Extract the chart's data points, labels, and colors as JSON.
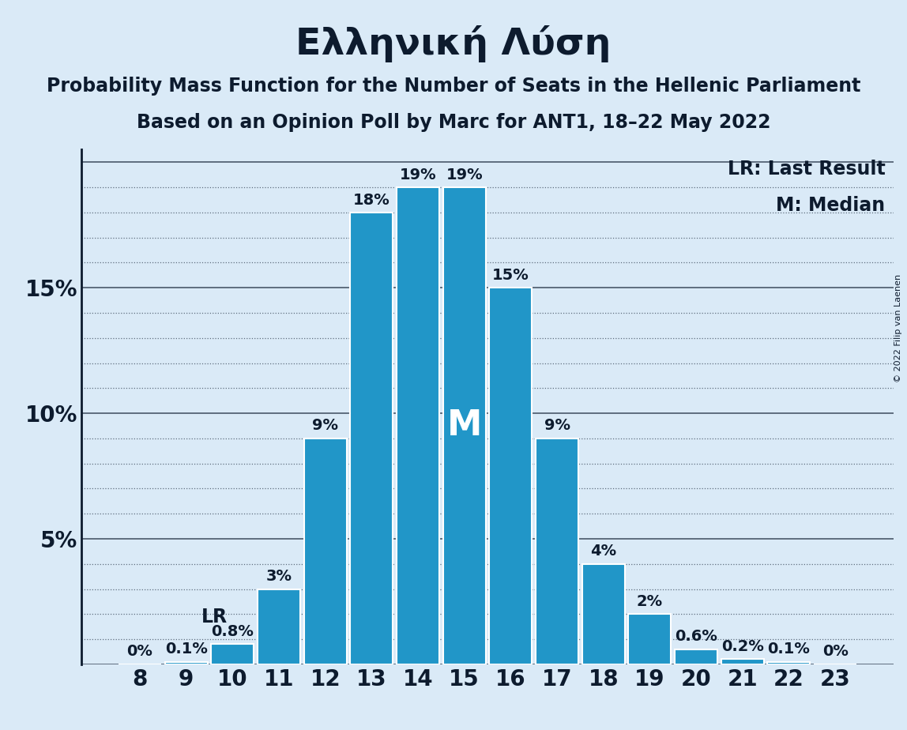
{
  "title": "Ελληνική Λύση",
  "subtitle1": "Probability Mass Function for the Number of Seats in the Hellenic Parliament",
  "subtitle2": "Based on an Opinion Poll by Marc for ANT1, 18–22 May 2022",
  "copyright": "© 2022 Filip van Laenen",
  "seats": [
    8,
    9,
    10,
    11,
    12,
    13,
    14,
    15,
    16,
    17,
    18,
    19,
    20,
    21,
    22,
    23
  ],
  "probabilities": [
    0.0,
    0.1,
    0.8,
    3.0,
    9.0,
    18.0,
    19.0,
    19.0,
    15.0,
    9.0,
    4.0,
    2.0,
    0.6,
    0.2,
    0.1,
    0.0
  ],
  "bar_labels": [
    "0%",
    "0.1%",
    "0.8%",
    "3%",
    "9%",
    "18%",
    "19%",
    "19%",
    "15%",
    "9%",
    "4%",
    "2%",
    "0.6%",
    "0.2%",
    "0.1%",
    "0%"
  ],
  "bar_color": "#2196C8",
  "background_color": "#daeaf7",
  "lr_seat": 10,
  "median_seat": 15,
  "ylim": [
    0,
    20.5
  ],
  "yticks": [
    0,
    5,
    10,
    15,
    20
  ],
  "ytick_labels": [
    "",
    "5%",
    "10%",
    "15%",
    ""
  ],
  "legend_lr": "LR: Last Result",
  "legend_m": "M: Median",
  "title_fontsize": 34,
  "subtitle_fontsize": 17,
  "axis_fontsize": 20,
  "bar_label_fontsize": 14,
  "legend_fontsize": 17,
  "copyright_fontsize": 8
}
